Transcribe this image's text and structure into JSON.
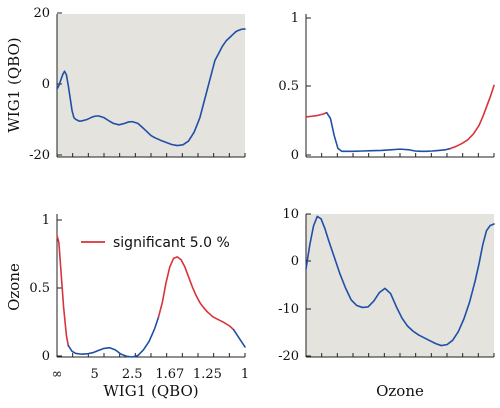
{
  "colors": {
    "blue": "#1f4fa8",
    "red": "#d9333a",
    "panel_bg": "#e4e3dd",
    "axis": "#222222"
  },
  "legend": {
    "label": "significant 5.0 %",
    "placement": "top-center of bottom-left panel"
  },
  "chart_data": [
    {
      "type": "line",
      "panel": "top-left",
      "ylabel": "WIG1 (QBO)",
      "xlabel": "",
      "background": "shaded",
      "xlim": [
        0,
        1
      ],
      "ylim": [
        -20,
        20
      ],
      "yticks": [
        "20",
        "0",
        "-20"
      ],
      "xticks": [],
      "series": [
        {
          "color": "blue",
          "x": [
            0.0,
            0.01,
            0.02,
            0.03,
            0.04,
            0.05,
            0.06,
            0.07,
            0.08,
            0.09,
            0.1,
            0.12,
            0.14,
            0.16,
            0.18,
            0.2,
            0.22,
            0.25,
            0.28,
            0.3,
            0.33,
            0.36,
            0.38,
            0.4,
            0.43,
            0.46,
            0.48,
            0.5,
            0.52,
            0.55,
            0.58,
            0.61,
            0.64,
            0.67,
            0.7,
            0.73,
            0.76,
            0.78,
            0.8,
            0.82,
            0.84,
            0.86,
            0.88,
            0.9,
            0.92,
            0.93,
            0.94,
            0.95,
            0.96,
            0.97,
            0.98,
            0.99,
            1.0
          ],
          "y": [
            -1,
            0,
            1.5,
            3,
            4,
            3,
            0,
            -3.5,
            -7,
            -9,
            -9.5,
            -10,
            -9.8,
            -9.5,
            -9,
            -8.6,
            -8.5,
            -9,
            -10,
            -10.6,
            -11,
            -10.6,
            -10.2,
            -10.1,
            -10.6,
            -12,
            -13,
            -14,
            -14.6,
            -15.3,
            -15.9,
            -16.5,
            -16.8,
            -16.6,
            -15.5,
            -13,
            -9,
            -5,
            -1,
            3,
            7,
            9,
            11,
            12.5,
            13.5,
            14,
            14.5,
            15,
            15.3,
            15.5,
            15.7,
            15.8,
            15.8
          ]
        }
      ]
    },
    {
      "type": "line",
      "panel": "top-right",
      "ylabel": "",
      "xlabel": "",
      "background": "white",
      "xlim": [
        0,
        1
      ],
      "ylim": [
        0,
        1
      ],
      "yticks": [
        "1",
        "0.5",
        "0"
      ],
      "xticks": [],
      "series": [
        {
          "color": "red",
          "x": [
            0.0,
            0.03,
            0.06,
            0.09,
            0.11
          ],
          "y": [
            0.28,
            0.285,
            0.29,
            0.3,
            0.31
          ]
        },
        {
          "color": "blue",
          "x": [
            0.11,
            0.13,
            0.15,
            0.17,
            0.19,
            0.21,
            0.25,
            0.3,
            0.35,
            0.4,
            0.45,
            0.5,
            0.55,
            0.58,
            0.61,
            0.64,
            0.67,
            0.7,
            0.74,
            0.77
          ],
          "y": [
            0.31,
            0.27,
            0.15,
            0.06,
            0.04,
            0.04,
            0.04,
            0.042,
            0.044,
            0.046,
            0.05,
            0.055,
            0.05,
            0.042,
            0.04,
            0.04,
            0.042,
            0.045,
            0.05,
            0.06
          ]
        },
        {
          "color": "red",
          "x": [
            0.77,
            0.8,
            0.83,
            0.86,
            0.89,
            0.92,
            0.94,
            0.96,
            0.98,
            1.0
          ],
          "y": [
            0.06,
            0.075,
            0.095,
            0.12,
            0.16,
            0.22,
            0.28,
            0.35,
            0.42,
            0.5
          ]
        }
      ]
    },
    {
      "type": "line",
      "panel": "bottom-left",
      "ylabel": "Ozone",
      "xlabel": "WIG1 (QBO)",
      "background": "white",
      "xlim": [
        0,
        1
      ],
      "ylim": [
        0,
        1
      ],
      "yticks": [
        "1",
        "0.5",
        "0"
      ],
      "xticks": [
        {
          "label": "∞",
          "x": 0.0
        },
        {
          "label": "5",
          "x": 0.2
        },
        {
          "label": "2.5",
          "x": 0.4
        },
        {
          "label": "1.67",
          "x": 0.6
        },
        {
          "label": "1.25",
          "x": 0.8
        },
        {
          "label": "1",
          "x": 1.0
        }
      ],
      "series": [
        {
          "color": "red",
          "x": [
            0.0,
            0.01,
            0.02,
            0.035,
            0.05,
            0.06
          ],
          "y": [
            0.85,
            0.8,
            0.62,
            0.35,
            0.15,
            0.08
          ]
        },
        {
          "color": "blue",
          "x": [
            0.06,
            0.08,
            0.1,
            0.13,
            0.16,
            0.19,
            0.22,
            0.25,
            0.28,
            0.31,
            0.34,
            0.37,
            0.4,
            0.43,
            0.46,
            0.49,
            0.52,
            0.54
          ],
          "y": [
            0.08,
            0.04,
            0.025,
            0.02,
            0.022,
            0.03,
            0.045,
            0.06,
            0.065,
            0.05,
            0.02,
            0.005,
            0.0,
            0.01,
            0.05,
            0.11,
            0.2,
            0.28
          ]
        },
        {
          "color": "red",
          "x": [
            0.54,
            0.56,
            0.58,
            0.6,
            0.62,
            0.64,
            0.66,
            0.68,
            0.7,
            0.72,
            0.74,
            0.76,
            0.78,
            0.8,
            0.83,
            0.86,
            0.89,
            0.92,
            0.94
          ],
          "y": [
            0.28,
            0.38,
            0.52,
            0.63,
            0.69,
            0.7,
            0.68,
            0.63,
            0.56,
            0.49,
            0.43,
            0.38,
            0.345,
            0.315,
            0.28,
            0.26,
            0.24,
            0.215,
            0.19
          ]
        },
        {
          "color": "blue",
          "x": [
            0.94,
            0.96,
            0.98,
            1.0
          ],
          "y": [
            0.19,
            0.15,
            0.11,
            0.07
          ]
        }
      ]
    },
    {
      "type": "line",
      "panel": "bottom-right",
      "ylabel": "",
      "xlabel": "Ozone",
      "background": "shaded",
      "xlim": [
        0,
        1
      ],
      "ylim": [
        -20,
        10
      ],
      "yticks": [
        "10",
        "0",
        "-10",
        "-20"
      ],
      "xticks": [],
      "series": [
        {
          "color": "blue",
          "x": [
            0.0,
            0.02,
            0.04,
            0.06,
            0.08,
            0.1,
            0.12,
            0.15,
            0.18,
            0.21,
            0.24,
            0.27,
            0.3,
            0.33,
            0.36,
            0.39,
            0.42,
            0.45,
            0.48,
            0.51,
            0.54,
            0.57,
            0.6,
            0.63,
            0.66,
            0.69,
            0.72,
            0.75,
            0.78,
            0.81,
            0.84,
            0.87,
            0.9,
            0.92,
            0.94,
            0.96,
            0.98,
            1.0
          ],
          "y": [
            -1.5,
            3.5,
            7.5,
            9.5,
            9.0,
            7.0,
            4.5,
            1.0,
            -2.5,
            -5.5,
            -8.0,
            -9.2,
            -9.6,
            -9.5,
            -8.3,
            -6.5,
            -5.6,
            -6.7,
            -9.4,
            -11.8,
            -13.5,
            -14.6,
            -15.4,
            -16.0,
            -16.6,
            -17.2,
            -17.6,
            -17.4,
            -16.5,
            -14.7,
            -12.0,
            -8.5,
            -4.0,
            -0.5,
            3.5,
            6.5,
            7.6,
            7.9
          ]
        }
      ]
    }
  ]
}
